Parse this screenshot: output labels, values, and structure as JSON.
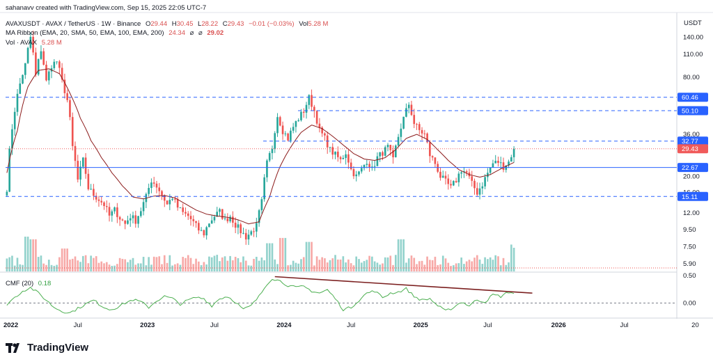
{
  "credit": "sahanavv created with TradingView.com, Sep 15, 2025 22:05 UTC-7",
  "legend": {
    "symbol": "AVAXUSDT · AVAX / TetherUS · 1W · Binance",
    "o_label": "O",
    "o_value": "29.44",
    "h_label": "H",
    "h_value": "30.45",
    "l_label": "L",
    "l_value": "28.22",
    "c_label": "C",
    "c_value": "29.43",
    "change": "−0.01 (−0.03%)",
    "vol_label": "Vol",
    "vol_value": "5.28 M",
    "ma_title": "MA Ribbon (EMA, 20, SMA, 50, EMA, 100, EMA, 200)",
    "ma_v1": "24.34",
    "ma_sep": "⌀",
    "ma_sep2": "⌀",
    "ma_v2": "29.02",
    "vol_title": "Vol · AVAX",
    "vol_title_value": "5.28 M",
    "cmf_title": "CMF (20)",
    "cmf_value": "0.18"
  },
  "brand": "TradingView",
  "colors": {
    "up": "#26a69a",
    "down": "#ef5350",
    "ma": "#8b1a1a",
    "level": "#2962ff",
    "cmf": "#4caf50",
    "trend": "#7b1f1f",
    "price_badge": "#f05a5a",
    "level_badge": "#2962ff"
  },
  "chart_data": [
    {
      "type": "candlestick",
      "title": "AVAXUSDT · AVAX / TetherUS · 1W · Binance",
      "currency": "USDT",
      "y_scale": "log",
      "ylim": [
        5.3,
        190
      ],
      "y_ticks": [
        "140.00",
        "110.00",
        "80.00",
        "36.00",
        "20.00",
        "16.00",
        "12.00",
        "9.50",
        "7.50",
        "5.90"
      ],
      "x_ticks": [
        "2022",
        "Jul",
        "2023",
        "Jul",
        "2024",
        "Jul",
        "2025",
        "Jul",
        "2026",
        "Jul",
        "20"
      ],
      "x_tick_week": [
        1.5,
        27,
        53.5,
        79,
        105.5,
        131,
        157.5,
        183,
        210,
        235,
        262
      ],
      "levels": [
        {
          "label": "60.46",
          "value": 60.46,
          "style": "dashed"
        },
        {
          "label": "50.10",
          "value": 50.1,
          "style": "dashed"
        },
        {
          "label": "32.77",
          "value": 32.77,
          "style": "dashed"
        },
        {
          "label": "22.67",
          "value": 22.67,
          "style": "solid"
        },
        {
          "label": "15.11",
          "value": 15.11,
          "style": "dashed"
        }
      ],
      "current_price": {
        "label": "29.43",
        "value": 29.43
      },
      "close_anchors_week_value": [
        [
          0,
          17
        ],
        [
          4,
          62
        ],
        [
          7,
          95
        ],
        [
          9,
          140
        ],
        [
          11,
          82
        ],
        [
          13,
          118
        ],
        [
          15,
          75
        ],
        [
          17,
          95
        ],
        [
          19,
          100
        ],
        [
          21,
          75
        ],
        [
          23,
          58
        ],
        [
          25,
          30
        ],
        [
          27,
          19
        ],
        [
          29,
          25
        ],
        [
          31,
          17
        ],
        [
          33,
          15.5
        ],
        [
          35,
          14.5
        ],
        [
          37,
          13.5
        ],
        [
          39,
          11.5
        ],
        [
          41,
          12.5
        ],
        [
          43,
          11.2
        ],
        [
          45,
          10.3
        ],
        [
          47,
          11.5
        ],
        [
          49,
          10.8
        ],
        [
          51,
          12.5
        ],
        [
          53,
          15
        ],
        [
          55,
          19
        ],
        [
          57,
          17.5
        ],
        [
          59,
          15.5
        ],
        [
          61,
          13.5
        ],
        [
          63,
          15
        ],
        [
          65,
          13
        ],
        [
          67,
          12
        ],
        [
          69,
          11.5
        ],
        [
          71,
          10.5
        ],
        [
          73,
          9.5
        ],
        [
          75,
          9
        ],
        [
          77,
          10.5
        ],
        [
          79,
          11.5
        ],
        [
          81,
          12.2
        ],
        [
          83,
          10.8
        ],
        [
          85,
          11.5
        ],
        [
          87,
          10.2
        ],
        [
          89,
          9.3
        ],
        [
          91,
          8.6
        ],
        [
          93,
          9.2
        ],
        [
          95,
          10
        ],
        [
          97,
          14
        ],
        [
          99,
          24
        ],
        [
          101,
          30
        ],
        [
          103,
          47
        ],
        [
          105,
          38
        ],
        [
          107,
          34
        ],
        [
          109,
          40
        ],
        [
          111,
          45
        ],
        [
          113,
          50
        ],
        [
          115,
          60
        ],
        [
          117,
          50
        ],
        [
          119,
          38
        ],
        [
          121,
          34
        ],
        [
          123,
          29
        ],
        [
          125,
          27
        ],
        [
          127,
          25
        ],
        [
          129,
          28
        ],
        [
          131,
          22
        ],
        [
          133,
          20
        ],
        [
          135,
          22
        ],
        [
          137,
          25
        ],
        [
          139,
          22
        ],
        [
          141,
          26
        ],
        [
          143,
          28
        ],
        [
          145,
          30
        ],
        [
          147,
          25
        ],
        [
          149,
          35
        ],
        [
          151,
          45
        ],
        [
          153,
          55
        ],
        [
          155,
          42
        ],
        [
          157,
          38
        ],
        [
          159,
          36
        ],
        [
          161,
          27
        ],
        [
          163,
          24
        ],
        [
          165,
          20
        ],
        [
          167,
          18.5
        ],
        [
          169,
          17
        ],
        [
          171,
          19
        ],
        [
          173,
          22
        ],
        [
          175,
          21
        ],
        [
          177,
          18
        ],
        [
          179,
          16
        ],
        [
          181,
          18
        ],
        [
          183,
          21
        ],
        [
          185,
          24
        ],
        [
          187,
          24.5
        ],
        [
          189,
          23
        ],
        [
          191,
          24.5
        ],
        [
          193,
          29.4
        ]
      ],
      "ma_anchors_week_value": [
        [
          0,
          21
        ],
        [
          4,
          38
        ],
        [
          8,
          70
        ],
        [
          12,
          88
        ],
        [
          16,
          90
        ],
        [
          20,
          84
        ],
        [
          24,
          64
        ],
        [
          28,
          45
        ],
        [
          32,
          33
        ],
        [
          36,
          26
        ],
        [
          40,
          21
        ],
        [
          44,
          17.5
        ],
        [
          48,
          15
        ],
        [
          52,
          14.6
        ],
        [
          56,
          15.2
        ],
        [
          60,
          15.3
        ],
        [
          64,
          14.8
        ],
        [
          68,
          13.6
        ],
        [
          72,
          12.5
        ],
        [
          76,
          11.8
        ],
        [
          80,
          11.5
        ],
        [
          84,
          11.3
        ],
        [
          88,
          10.9
        ],
        [
          92,
          10.3
        ],
        [
          96,
          10.6
        ],
        [
          100,
          15
        ],
        [
          104,
          23
        ],
        [
          108,
          30
        ],
        [
          112,
          37
        ],
        [
          116,
          41
        ],
        [
          120,
          39
        ],
        [
          124,
          35
        ],
        [
          128,
          31
        ],
        [
          132,
          27.5
        ],
        [
          136,
          25.5
        ],
        [
          140,
          25
        ],
        [
          144,
          26
        ],
        [
          148,
          29
        ],
        [
          152,
          34
        ],
        [
          156,
          36
        ],
        [
          160,
          33.5
        ],
        [
          164,
          29
        ],
        [
          168,
          25
        ],
        [
          172,
          22
        ],
        [
          176,
          20.5
        ],
        [
          180,
          19.8
        ],
        [
          184,
          20.5
        ],
        [
          188,
          22.2
        ],
        [
          193,
          24.3
        ]
      ]
    },
    {
      "type": "bar",
      "title": "Vol · AVAX",
      "latest": "5.28 M",
      "note": "weekly volume bars, coloured by candle direction",
      "relative_peaks_week": [
        [
          8,
          1.0
        ],
        [
          10,
          0.9
        ],
        [
          22,
          0.55
        ],
        [
          100,
          0.75
        ],
        [
          105,
          0.95
        ],
        [
          115,
          0.8
        ],
        [
          150,
          0.9
        ],
        [
          193,
          0.7
        ]
      ]
    },
    {
      "type": "line",
      "title": "CMF (20)",
      "latest": "0.18",
      "y_ticks": [
        "0.50",
        "0.00"
      ],
      "ylim": [
        -0.25,
        0.55
      ],
      "anchors_week_value": [
        [
          0,
          -0.02
        ],
        [
          3,
          0.1
        ],
        [
          6,
          0.22
        ],
        [
          9,
          0.28
        ],
        [
          12,
          0.18
        ],
        [
          15,
          0.05
        ],
        [
          18,
          -0.08
        ],
        [
          21,
          -0.15
        ],
        [
          24,
          -0.18
        ],
        [
          27,
          -0.1
        ],
        [
          30,
          -0.02
        ],
        [
          33,
          0.05
        ],
        [
          36,
          -0.05
        ],
        [
          39,
          -0.12
        ],
        [
          42,
          -0.08
        ],
        [
          45,
          0.0
        ],
        [
          48,
          0.06
        ],
        [
          51,
          0.02
        ],
        [
          54,
          -0.08
        ],
        [
          57,
          0.04
        ],
        [
          60,
          0.12
        ],
        [
          63,
          0.08
        ],
        [
          66,
          -0.02
        ],
        [
          69,
          0.05
        ],
        [
          72,
          0.1
        ],
        [
          75,
          0.08
        ],
        [
          78,
          -0.05
        ],
        [
          81,
          0.08
        ],
        [
          84,
          0.12
        ],
        [
          87,
          0.02
        ],
        [
          90,
          -0.12
        ],
        [
          93,
          -0.05
        ],
        [
          96,
          0.12
        ],
        [
          99,
          0.35
        ],
        [
          101,
          0.45
        ],
        [
          104,
          0.4
        ],
        [
          107,
          0.32
        ],
        [
          110,
          0.28
        ],
        [
          113,
          0.3
        ],
        [
          116,
          0.22
        ],
        [
          119,
          0.18
        ],
        [
          122,
          0.24
        ],
        [
          125,
          0.08
        ],
        [
          128,
          -0.12
        ],
        [
          131,
          -0.08
        ],
        [
          134,
          0.05
        ],
        [
          137,
          0.18
        ],
        [
          140,
          0.22
        ],
        [
          143,
          0.1
        ],
        [
          146,
          0.18
        ],
        [
          149,
          0.2
        ],
        [
          152,
          0.26
        ],
        [
          155,
          0.12
        ],
        [
          158,
          0.05
        ],
        [
          161,
          0.08
        ],
        [
          164,
          -0.05
        ],
        [
          167,
          -0.15
        ],
        [
          170,
          -0.08
        ],
        [
          173,
          0.02
        ],
        [
          176,
          -0.05
        ],
        [
          179,
          0.06
        ],
        [
          182,
          0.02
        ],
        [
          185,
          0.15
        ],
        [
          188,
          0.12
        ],
        [
          191,
          0.2
        ],
        [
          193,
          0.18
        ]
      ],
      "trendline_week_value": [
        [
          102,
          0.48
        ],
        [
          200,
          0.18
        ]
      ]
    }
  ]
}
